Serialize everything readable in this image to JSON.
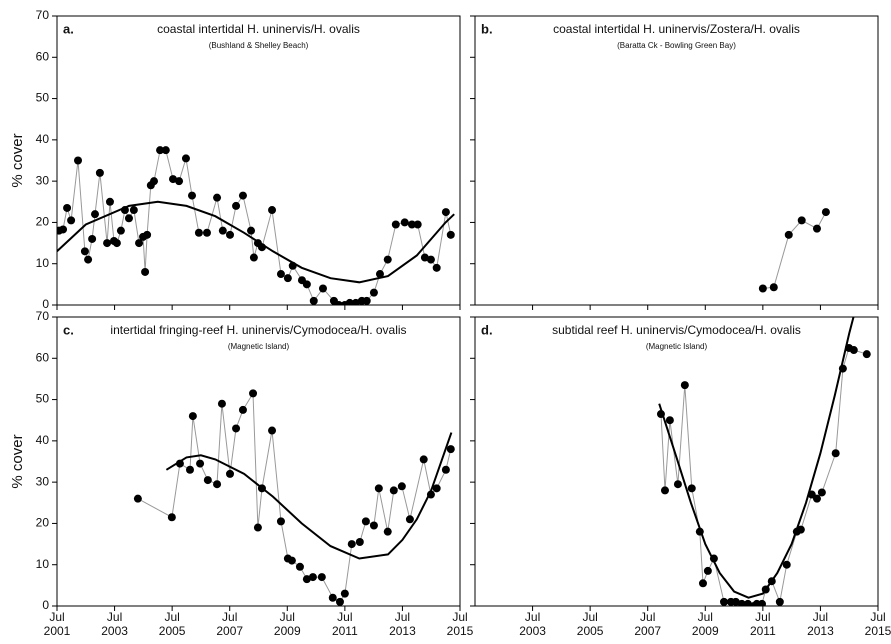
{
  "chart_data": [
    {
      "type": "line",
      "panel": "a.",
      "title": "coastal intertidal H. uninervis/H. ovalis",
      "subtitle": "(Bushland & Shelley Beach)",
      "ylabel": "% cover",
      "xlim": [
        2001.5,
        2015.5
      ],
      "ylim": [
        0,
        70
      ],
      "yticks": [
        0,
        10,
        20,
        30,
        40,
        50,
        60,
        70
      ],
      "xticks": [
        2001.5,
        2003.5,
        2005.5,
        2007.5,
        2009.5,
        2011.5,
        2013.5,
        2015.5
      ],
      "series": [
        {
          "color": "#000000",
          "line_color": "#999999",
          "x": [
            2001.57,
            2001.71,
            2001.85,
            2001.99,
            2002.23,
            2002.47,
            2002.58,
            2002.72,
            2002.82,
            2002.99,
            2003.24,
            2003.34,
            2003.48,
            2003.58,
            2003.72,
            2003.86,
            2004.0,
            2004.17,
            2004.35,
            2004.49,
            2004.56,
            2004.63,
            2004.76,
            2004.87,
            2005.08,
            2005.28,
            2005.53,
            2005.74,
            2005.98,
            2006.19,
            2006.43,
            2006.71,
            2007.06,
            2007.26,
            2007.51,
            2007.72,
            2007.96,
            2008.24,
            2008.34,
            2008.48,
            2008.62,
            2008.97,
            2009.28,
            2009.52,
            2009.69,
            2010.01,
            2010.18,
            2010.42,
            2010.74,
            2011.12,
            2011.29,
            2011.5,
            2011.67,
            2011.88,
            2012.09,
            2012.26,
            2012.51,
            2012.72,
            2012.99,
            2013.27,
            2013.58,
            2013.83,
            2014.03,
            2014.28,
            2014.49,
            2014.69,
            2015.01,
            2015.18
          ],
          "values": [
            18,
            18.3,
            23.5,
            20.5,
            35,
            13,
            11,
            16,
            22,
            32,
            15,
            25,
            15.5,
            15,
            18,
            23,
            21,
            23,
            15,
            16.5,
            8,
            17,
            29,
            30,
            37.5,
            37.5,
            30.5,
            30,
            35.5,
            26.5,
            17.5,
            17.5,
            26,
            18,
            17,
            24,
            26.5,
            18,
            11.5,
            15,
            14,
            23,
            7.5,
            6.5,
            9.5,
            6,
            5,
            1,
            4,
            1,
            0,
            0,
            0.5,
            0.5,
            1,
            1,
            3,
            7.5,
            11,
            19.5,
            20,
            19.5,
            19.5,
            11.5,
            11,
            9,
            22.5,
            17
          ]
        }
      ],
      "fit": {
        "color": "#000000",
        "x": [
          2001.5,
          2002.5,
          2004,
          2005,
          2006,
          2007,
          2008,
          2009,
          2010,
          2011,
          2012,
          2013,
          2014,
          2015,
          2015.3
        ],
        "values": [
          13,
          19.5,
          24,
          25,
          24,
          21.5,
          17.5,
          13,
          9,
          6.5,
          5.5,
          7,
          12,
          20,
          22
        ]
      }
    },
    {
      "type": "line",
      "panel": "b.",
      "title": "coastal intertidal H. uninervis/Zostera/H. ovalis",
      "subtitle": "(Baratta Ck - Bowling Green Bay)",
      "xlim": [
        2001.5,
        2015.5
      ],
      "ylim": [
        0,
        70
      ],
      "yticks": [
        0,
        10,
        20,
        30,
        40,
        50,
        60,
        70
      ],
      "xticks": [
        2003.5,
        2005.5,
        2007.5,
        2009.5,
        2011.5,
        2013.5,
        2015.5
      ],
      "series": [
        {
          "color": "#000000",
          "line_color": "#999999",
          "x": [
            2011.5,
            2011.88,
            2012.4,
            2012.85,
            2013.38,
            2013.69
          ],
          "values": [
            4,
            4.3,
            17,
            20.5,
            18.5,
            22.5
          ]
        }
      ]
    },
    {
      "type": "line",
      "panel": "c.",
      "title": "intertidal fringing-reef H. uninervis/Cymodocea/H. ovalis",
      "subtitle": "(Magnetic Island)",
      "ylabel": "% cover",
      "xlim": [
        2001.5,
        2015.5
      ],
      "ylim": [
        0,
        70
      ],
      "yticks": [
        0,
        10,
        20,
        30,
        40,
        50,
        60,
        70
      ],
      "xticks": [
        {
          "value": 2001.5,
          "label": "Jul 2001"
        },
        {
          "value": 2003.5,
          "label": "Jul 2003"
        },
        {
          "value": 2005.5,
          "label": "Jul 2005"
        },
        {
          "value": 2007.5,
          "label": "Jul 2007"
        },
        {
          "value": 2009.5,
          "label": "Jul 2009"
        },
        {
          "value": 2011.5,
          "label": "Jul 2011"
        },
        {
          "value": 2013.5,
          "label": "Jul 2013"
        },
        {
          "value": 2015.5,
          "label": "Jul 2015"
        }
      ],
      "series": [
        {
          "color": "#000000",
          "line_color": "#999999",
          "x": [
            2004.31,
            2005.49,
            2005.77,
            2006.12,
            2006.22,
            2006.47,
            2006.74,
            2007.06,
            2007.23,
            2007.51,
            2007.72,
            2007.96,
            2008.31,
            2008.48,
            2008.62,
            2008.97,
            2009.28,
            2009.52,
            2009.66,
            2009.94,
            2010.18,
            2010.39,
            2010.7,
            2011.08,
            2011.33,
            2011.5,
            2011.74,
            2012.02,
            2012.23,
            2012.51,
            2012.68,
            2012.99,
            2013.2,
            2013.48,
            2013.76,
            2014.24,
            2014.49,
            2014.69,
            2015.01,
            2015.18
          ],
          "values": [
            26,
            21.5,
            34.5,
            33,
            46,
            34.5,
            30.5,
            29.5,
            49,
            32,
            43,
            47.5,
            51.5,
            19,
            28.5,
            42.5,
            20.5,
            11.5,
            11,
            9.5,
            6.5,
            7,
            7,
            2,
            1,
            3,
            15,
            15.5,
            20.5,
            19.5,
            28.5,
            18,
            28,
            29,
            21,
            35.5,
            27,
            28.5,
            33,
            38
          ]
        }
      ],
      "fit": {
        "color": "#000000",
        "x": [
          2005.3,
          2006,
          2006.5,
          2007,
          2008,
          2009,
          2010,
          2011,
          2012,
          2013,
          2013.5,
          2014,
          2014.5,
          2015.2
        ],
        "values": [
          33,
          36,
          36.5,
          35.5,
          32,
          26.5,
          20,
          14.5,
          11.5,
          12.5,
          16,
          21,
          28,
          42
        ]
      }
    },
    {
      "type": "line",
      "panel": "d.",
      "title": "subtidal reef H. uninervis/Cymodocea/H. ovalis",
      "subtitle": "(Magnetic Island)",
      "xlim": [
        2001.5,
        2015.5
      ],
      "ylim": [
        0,
        70
      ],
      "yticks": [
        0,
        10,
        20,
        30,
        40,
        50,
        60,
        70
      ],
      "xticks": [
        {
          "value": 2003.5,
          "label": "Jul 2003"
        },
        {
          "value": 2005.5,
          "label": "Jul 2005"
        },
        {
          "value": 2007.5,
          "label": "Jul 2007"
        },
        {
          "value": 2009.5,
          "label": "Jul 2009"
        },
        {
          "value": 2011.5,
          "label": "Jul 2011"
        },
        {
          "value": 2013.5,
          "label": "Jul 2013"
        },
        {
          "value": 2015.5,
          "label": "Jul 2015"
        }
      ],
      "series": [
        {
          "color": "#000000",
          "line_color": "#999999",
          "x": [
            2007.96,
            2008.1,
            2008.27,
            2008.55,
            2008.79,
            2009.03,
            2009.31,
            2009.42,
            2009.59,
            2009.8,
            2010.15,
            2010.39,
            2010.56,
            2010.77,
            2010.98,
            2011.19,
            2011.29,
            2011.47,
            2011.6,
            2011.81,
            2012.09,
            2012.33,
            2012.68,
            2012.82,
            2013.2,
            2013.38,
            2013.55,
            2014.03,
            2014.28,
            2014.49,
            2014.66,
            2015.11
          ],
          "values": [
            46.5,
            28,
            45,
            29.5,
            53.5,
            28.5,
            18,
            5.5,
            8.5,
            11.5,
            1,
            1,
            1,
            0.5,
            0.5,
            0,
            0.5,
            0.5,
            4,
            6,
            1,
            10,
            18,
            18.5,
            27,
            26,
            27.5,
            37,
            57.5,
            62.5,
            62,
            61
          ]
        }
      ],
      "fit": {
        "color": "#000000",
        "x": [
          2007.9,
          2008.5,
          2009,
          2009.5,
          2010,
          2010.5,
          2011,
          2011.5,
          2012,
          2012.5,
          2013,
          2013.5,
          2014,
          2014.5,
          2014.65
        ],
        "values": [
          49,
          36,
          25,
          15,
          8,
          3.5,
          2,
          3,
          8,
          15,
          25,
          37,
          51,
          66,
          70
        ]
      }
    }
  ]
}
